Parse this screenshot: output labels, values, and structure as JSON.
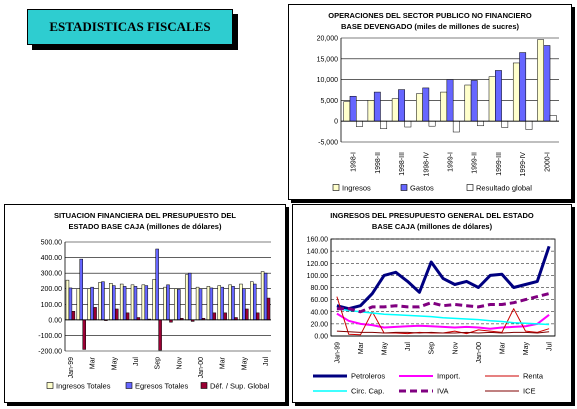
{
  "banner": {
    "title": "ESTADISTICAS FISCALES"
  },
  "chart_data": [
    {
      "type": "bar",
      "title": "OPERACIONES DEL SECTOR PUBLICO NO FINANCIERO",
      "subtitle": "BASE DEVENGADO (miles de millones de sucres)",
      "categories": [
        "1998-I",
        "1998-II",
        "1998-III",
        "1998-IV",
        "1999-I",
        "1999-II",
        "1999-III",
        "1999-IV",
        "2000-I"
      ],
      "ylim": [
        -5000,
        20000
      ],
      "yticks": [
        "-5,000",
        "0",
        "5,000",
        "10,000",
        "15,000",
        "20,000"
      ],
      "grid": true,
      "legend_position": "bottom",
      "series": [
        {
          "name": "Ingresos",
          "color": "#ffffcc",
          "values": [
            4700,
            5000,
            5400,
            6600,
            7000,
            8700,
            10700,
            14000,
            19600
          ]
        },
        {
          "name": "Gastos",
          "color": "#6666ff",
          "values": [
            6000,
            7000,
            7600,
            8000,
            10000,
            9800,
            12200,
            16500,
            18200
          ]
        },
        {
          "name": "Resultado global",
          "color": "#ffffff",
          "values": [
            -1300,
            -1800,
            -1400,
            -1200,
            -2600,
            -1100,
            -1500,
            -2000,
            1400
          ]
        }
      ]
    },
    {
      "type": "bar",
      "title": "SITUACION FINANCIERA DEL PRESUPUESTO DEL",
      "subtitle": "ESTADO BASE CAJA (millones de dólares)",
      "categories": [
        "Jan-99",
        "",
        "Mar",
        "",
        "May",
        "",
        "Jul",
        "",
        "Sep",
        "",
        "Nov",
        "",
        "Jan-00",
        "",
        "Mar",
        "",
        "May",
        "",
        "Jul"
      ],
      "ylim": [
        -200,
        500
      ],
      "yticks": [
        "-200.00",
        "-100.00",
        "0.00",
        "100.00",
        "200.00",
        "300.00",
        "400.00",
        "500.00"
      ],
      "grid": true,
      "legend_position": "bottom",
      "series": [
        {
          "name": "Ingresos Totales",
          "color": "#ffffcc",
          "values": [
            255,
            200,
            200,
            240,
            235,
            230,
            225,
            225,
            260,
            210,
            200,
            290,
            210,
            215,
            220,
            225,
            230,
            245,
            310
          ]
        },
        {
          "name": "Egresos Totales",
          "color": "#6666ff",
          "values": [
            205,
            390,
            210,
            245,
            220,
            215,
            215,
            220,
            455,
            225,
            195,
            300,
            200,
            205,
            210,
            215,
            200,
            230,
            300
          ]
        },
        {
          "name": "Déf. / Sup. Global",
          "color": "#990033",
          "values": [
            55,
            -190,
            80,
            -5,
            70,
            45,
            15,
            5,
            -195,
            -15,
            10,
            -10,
            10,
            45,
            45,
            15,
            70,
            45,
            140
          ]
        }
      ]
    },
    {
      "type": "line",
      "title": "INGRESOS DEL PRESUPUESTO GENERAL DEL ESTADO",
      "subtitle": "BASE CAJA (millones de dólares)",
      "categories": [
        "Jan-99",
        "",
        "Mar",
        "",
        "May",
        "",
        "Jul",
        "",
        "Sep",
        "",
        "Nov",
        "",
        "Jan-00",
        "",
        "Mar",
        "",
        "May",
        "",
        "Jul"
      ],
      "ylim": [
        0,
        160
      ],
      "yticks": [
        "0.00",
        "20.00",
        "40.00",
        "60.00",
        "80.00",
        "100.00",
        "120.00",
        "140.00",
        "160.00"
      ],
      "grid": true,
      "legend_position": "bottom",
      "series": [
        {
          "name": "Petroleros",
          "color": "#000080",
          "dash": "",
          "width": 3,
          "values": [
            50,
            45,
            50,
            70,
            100,
            105,
            90,
            72,
            122,
            95,
            85,
            90,
            80,
            100,
            102,
            80,
            85,
            90,
            148
          ]
        },
        {
          "name": "Import.",
          "color": "#ff00ff",
          "dash": "",
          "width": 2,
          "values": [
            37,
            25,
            20,
            18,
            14,
            15,
            16,
            17,
            16,
            15,
            14,
            15,
            14,
            12,
            14,
            15,
            16,
            20,
            35
          ]
        },
        {
          "name": "Renta",
          "color": "#cc0000",
          "dash": "",
          "width": 1,
          "values": [
            65,
            3,
            2,
            40,
            5,
            5,
            4,
            6,
            5,
            5,
            8,
            4,
            10,
            8,
            6,
            45,
            8,
            6,
            12
          ]
        },
        {
          "name": "Circ. Cap.",
          "color": "#00ffff",
          "dash": "",
          "width": 1.5,
          "values": [
            45,
            42,
            40,
            38,
            36,
            35,
            34,
            33,
            32,
            30,
            29,
            28,
            27,
            25,
            24,
            22,
            21,
            20,
            19
          ]
        },
        {
          "name": "IVA",
          "color": "#800080",
          "dash": "7,4",
          "width": 3,
          "values": [
            45,
            45,
            40,
            48,
            48,
            50,
            48,
            48,
            55,
            50,
            52,
            50,
            48,
            52,
            52,
            55,
            60,
            65,
            70
          ]
        },
        {
          "name": "ICE",
          "color": "#800000",
          "dash": "",
          "width": 1,
          "values": [
            8,
            7,
            6,
            6,
            5,
            6,
            6,
            5,
            6,
            5,
            5,
            6,
            5,
            6,
            5,
            6,
            6,
            5,
            7
          ]
        }
      ]
    }
  ]
}
